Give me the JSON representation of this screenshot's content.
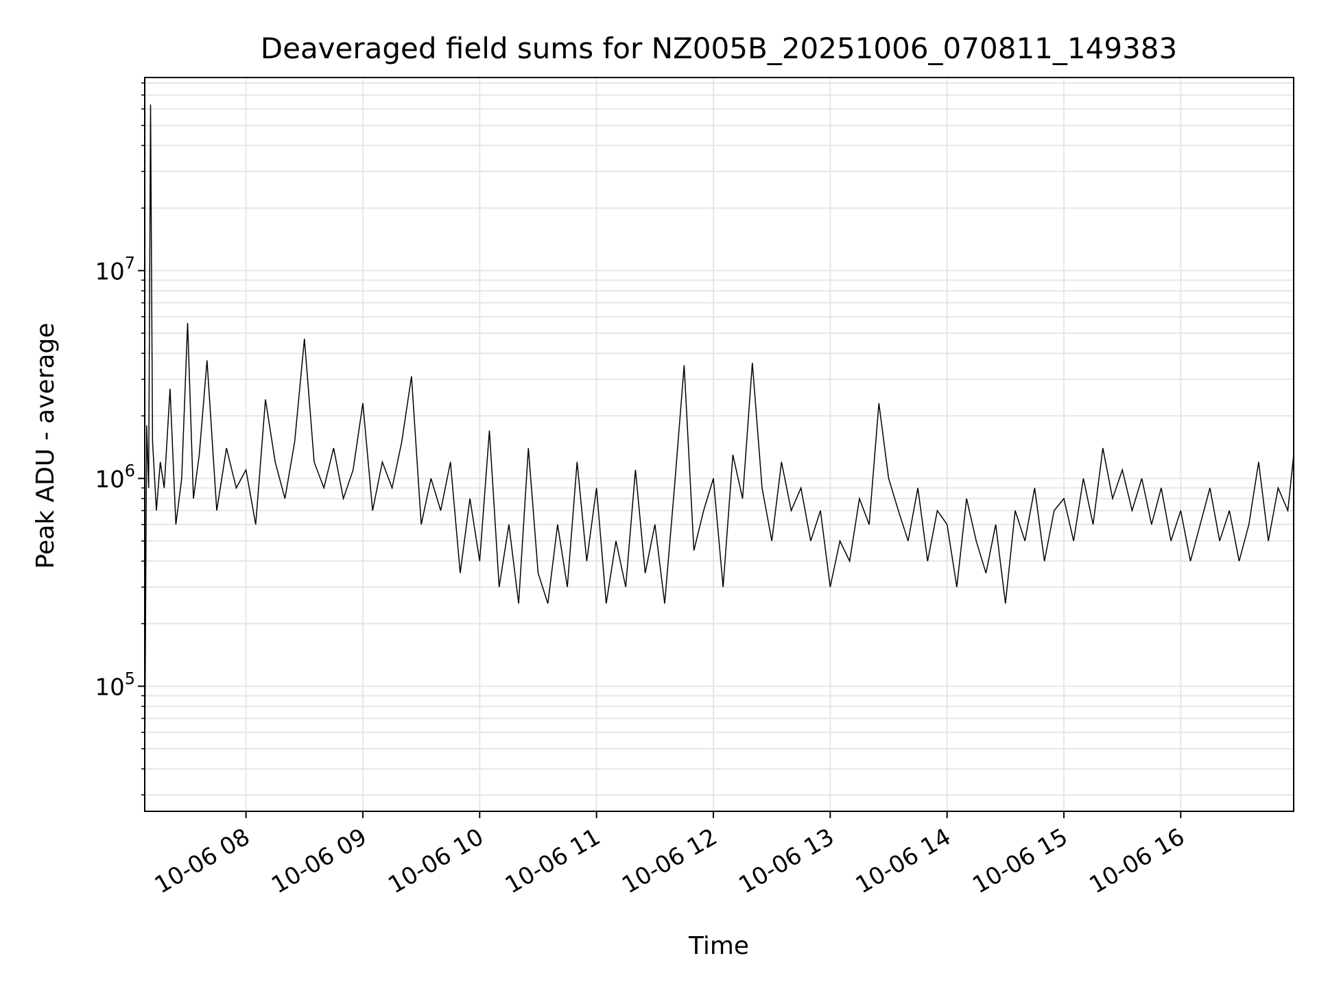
{
  "chart_data": {
    "type": "line",
    "title": "Deaveraged field sums for NZ005B_20251006_070811_149383",
    "xlabel": "Time",
    "ylabel": "Peak ADU - average",
    "yscale": "log",
    "ylim": [
      25000,
      85000000
    ],
    "xlim": [
      "2025-10-06 07:08",
      "2025-10-06 16:58"
    ],
    "grid": true,
    "legend": "none",
    "line_color": "#000000",
    "x_ticks": [
      {
        "value": "2025-10-06 08:00",
        "label": "10-06 08"
      },
      {
        "value": "2025-10-06 09:00",
        "label": "10-06 09"
      },
      {
        "value": "2025-10-06 10:00",
        "label": "10-06 10"
      },
      {
        "value": "2025-10-06 11:00",
        "label": "10-06 11"
      },
      {
        "value": "2025-10-06 12:00",
        "label": "10-06 12"
      },
      {
        "value": "2025-10-06 13:00",
        "label": "10-06 13"
      },
      {
        "value": "2025-10-06 14:00",
        "label": "10-06 14"
      },
      {
        "value": "2025-10-06 15:00",
        "label": "10-06 15"
      },
      {
        "value": "2025-10-06 16:00",
        "label": "10-06 16"
      }
    ],
    "y_ticks": [
      {
        "value": 100000,
        "base": "10",
        "exp": "5"
      },
      {
        "value": 1000000,
        "base": "10",
        "exp": "6"
      },
      {
        "value": 10000000,
        "base": "10",
        "exp": "7"
      }
    ],
    "series": [
      {
        "x": [
          "2025-10-06 07:08",
          "2025-10-06 07:09",
          "2025-10-06 07:10",
          "2025-10-06 07:11",
          "2025-10-06 07:12",
          "2025-10-06 07:14",
          "2025-10-06 07:16",
          "2025-10-06 07:18",
          "2025-10-06 07:21",
          "2025-10-06 07:24",
          "2025-10-06 07:27",
          "2025-10-06 07:30",
          "2025-10-06 07:33",
          "2025-10-06 07:36",
          "2025-10-06 07:40",
          "2025-10-06 07:45",
          "2025-10-06 07:50",
          "2025-10-06 07:55",
          "2025-10-06 08:00",
          "2025-10-06 08:05",
          "2025-10-06 08:10",
          "2025-10-06 08:15",
          "2025-10-06 08:20",
          "2025-10-06 08:25",
          "2025-10-06 08:30",
          "2025-10-06 08:35",
          "2025-10-06 08:40",
          "2025-10-06 08:45",
          "2025-10-06 08:50",
          "2025-10-06 08:55",
          "2025-10-06 09:00",
          "2025-10-06 09:05",
          "2025-10-06 09:10",
          "2025-10-06 09:15",
          "2025-10-06 09:20",
          "2025-10-06 09:25",
          "2025-10-06 09:30",
          "2025-10-06 09:35",
          "2025-10-06 09:40",
          "2025-10-06 09:45",
          "2025-10-06 09:50",
          "2025-10-06 09:55",
          "2025-10-06 10:00",
          "2025-10-06 10:05",
          "2025-10-06 10:10",
          "2025-10-06 10:15",
          "2025-10-06 10:20",
          "2025-10-06 10:25",
          "2025-10-06 10:30",
          "2025-10-06 10:35",
          "2025-10-06 10:40",
          "2025-10-06 10:45",
          "2025-10-06 10:50",
          "2025-10-06 10:55",
          "2025-10-06 11:00",
          "2025-10-06 11:05",
          "2025-10-06 11:10",
          "2025-10-06 11:15",
          "2025-10-06 11:20",
          "2025-10-06 11:25",
          "2025-10-06 11:30",
          "2025-10-06 11:35",
          "2025-10-06 11:40",
          "2025-10-06 11:45",
          "2025-10-06 11:50",
          "2025-10-06 11:55",
          "2025-10-06 12:00",
          "2025-10-06 12:05",
          "2025-10-06 12:10",
          "2025-10-06 12:15",
          "2025-10-06 12:20",
          "2025-10-06 12:25",
          "2025-10-06 12:30",
          "2025-10-06 12:35",
          "2025-10-06 12:40",
          "2025-10-06 12:45",
          "2025-10-06 12:50",
          "2025-10-06 12:55",
          "2025-10-06 13:00",
          "2025-10-06 13:05",
          "2025-10-06 13:10",
          "2025-10-06 13:15",
          "2025-10-06 13:20",
          "2025-10-06 13:25",
          "2025-10-06 13:30",
          "2025-10-06 13:35",
          "2025-10-06 13:40",
          "2025-10-06 13:45",
          "2025-10-06 13:50",
          "2025-10-06 13:55",
          "2025-10-06 14:00",
          "2025-10-06 14:05",
          "2025-10-06 14:10",
          "2025-10-06 14:15",
          "2025-10-06 14:20",
          "2025-10-06 14:25",
          "2025-10-06 14:30",
          "2025-10-06 14:35",
          "2025-10-06 14:40",
          "2025-10-06 14:45",
          "2025-10-06 14:50",
          "2025-10-06 14:55",
          "2025-10-06 15:00",
          "2025-10-06 15:05",
          "2025-10-06 15:10",
          "2025-10-06 15:15",
          "2025-10-06 15:20",
          "2025-10-06 15:25",
          "2025-10-06 15:30",
          "2025-10-06 15:35",
          "2025-10-06 15:40",
          "2025-10-06 15:45",
          "2025-10-06 15:50",
          "2025-10-06 15:55",
          "2025-10-06 16:00",
          "2025-10-06 16:05",
          "2025-10-06 16:10",
          "2025-10-06 16:15",
          "2025-10-06 16:20",
          "2025-10-06 16:25",
          "2025-10-06 16:30",
          "2025-10-06 16:35",
          "2025-10-06 16:40",
          "2025-10-06 16:45",
          "2025-10-06 16:50",
          "2025-10-06 16:55",
          "2025-10-06 16:58"
        ],
        "y": [
          40000,
          1800000,
          900000,
          63000000,
          1500000,
          700000,
          1200000,
          900000,
          2700000,
          600000,
          1000000,
          5600000,
          800000,
          1300000,
          3700000,
          700000,
          1400000,
          900000,
          1100000,
          600000,
          2400000,
          1200000,
          800000,
          1500000,
          4700000,
          1200000,
          900000,
          1400000,
          800000,
          1100000,
          2300000,
          700000,
          1200000,
          900000,
          1500000,
          3100000,
          600000,
          1000000,
          700000,
          1200000,
          350000,
          800000,
          400000,
          1700000,
          300000,
          600000,
          250000,
          1400000,
          350000,
          250000,
          600000,
          300000,
          1200000,
          400000,
          900000,
          250000,
          500000,
          300000,
          1100000,
          350000,
          600000,
          250000,
          900000,
          3500000,
          450000,
          700000,
          1000000,
          300000,
          1300000,
          800000,
          3600000,
          900000,
          500000,
          1200000,
          700000,
          900000,
          500000,
          700000,
          300000,
          500000,
          400000,
          800000,
          600000,
          2300000,
          1000000,
          700000,
          500000,
          900000,
          400000,
          700000,
          600000,
          300000,
          800000,
          500000,
          350000,
          600000,
          250000,
          700000,
          500000,
          900000,
          400000,
          700000,
          800000,
          500000,
          1000000,
          600000,
          1400000,
          800000,
          1100000,
          700000,
          1000000,
          600000,
          900000,
          500000,
          700000,
          400000,
          600000,
          900000,
          500000,
          700000,
          400000,
          600000,
          1200000,
          500000,
          900000,
          700000,
          1300000
        ]
      }
    ]
  }
}
